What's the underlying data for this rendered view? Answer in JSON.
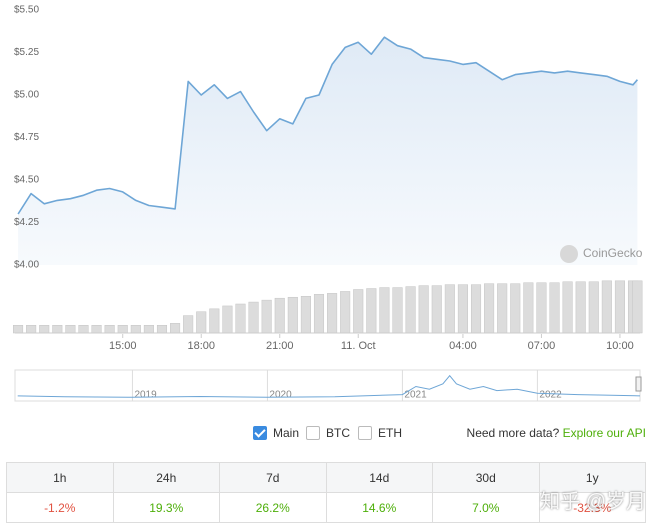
{
  "chart_data": {
    "type": "line",
    "color": "#6ea6d6",
    "x": [
      "11:00",
      "11:30",
      "12:00",
      "12:30",
      "13:00",
      "13:30",
      "14:00",
      "14:30",
      "15:00",
      "15:30",
      "16:00",
      "16:30",
      "17:00",
      "17:30",
      "18:00",
      "18:30",
      "19:00",
      "19:30",
      "20:00",
      "20:30",
      "21:00",
      "21:30",
      "22:00",
      "22:30",
      "23:00",
      "23:30",
      "00:00",
      "00:30",
      "01:00",
      "01:30",
      "02:00",
      "02:30",
      "03:00",
      "03:30",
      "04:00",
      "04:30",
      "05:00",
      "05:30",
      "06:00",
      "06:30",
      "07:00",
      "07:30",
      "08:00",
      "08:30",
      "09:00",
      "09:30",
      "10:00",
      "10:30",
      "10:40"
    ],
    "values": [
      4.3,
      4.42,
      4.36,
      4.38,
      4.39,
      4.41,
      4.44,
      4.45,
      4.43,
      4.38,
      4.35,
      4.34,
      4.33,
      5.08,
      5.0,
      5.06,
      4.98,
      5.02,
      4.9,
      4.79,
      4.86,
      4.83,
      4.98,
      5.0,
      5.18,
      5.28,
      5.31,
      5.24,
      5.34,
      5.29,
      5.27,
      5.22,
      5.21,
      5.2,
      5.18,
      5.19,
      5.14,
      5.09,
      5.12,
      5.13,
      5.14,
      5.13,
      5.14,
      5.13,
      5.12,
      5.11,
      5.08,
      5.06,
      5.09
    ],
    "volumes": [
      8,
      8,
      8,
      8,
      8,
      8,
      8,
      8,
      8,
      8,
      8,
      8,
      10,
      18,
      22,
      25,
      28,
      30,
      32,
      34,
      36,
      37,
      38,
      40,
      41,
      43,
      45,
      46,
      47,
      47,
      48,
      49,
      49,
      50,
      50,
      50,
      51,
      51,
      51,
      52,
      52,
      52,
      53,
      53,
      53,
      54,
      54,
      54,
      54
    ],
    "volume_ylim": [
      0,
      60
    ],
    "xlim": [
      "10:53",
      "10:46"
    ],
    "xticks": [
      "15:00",
      "18:00",
      "21:00",
      {
        "value": "00:00",
        "label": "11. Oct"
      },
      "04:00",
      "07:00",
      "10:00"
    ],
    "ylim": [
      4.0,
      5.5
    ],
    "yticks": [
      {
        "value": 4.0,
        "label": "$4.00"
      },
      {
        "value": 4.25,
        "label": "$4.25"
      },
      {
        "value": 4.5,
        "label": "$4.50"
      },
      {
        "value": 4.75,
        "label": "$4.75"
      },
      {
        "value": 5.0,
        "label": "$5.00"
      },
      {
        "value": 5.25,
        "label": "$5.25"
      },
      {
        "value": 5.5,
        "label": "$5.50"
      }
    ],
    "watermark": "CoinGecko",
    "navigator": {
      "x": [
        2018.15,
        2018.5,
        2019,
        2019.5,
        2020,
        2020.5,
        2021,
        2021.1,
        2021.2,
        2021.3,
        2021.35,
        2021.4,
        2021.5,
        2021.6,
        2021.7,
        2021.85,
        2022,
        2022.3,
        2022.5,
        2022.76
      ],
      "values": [
        1.5,
        1.2,
        1.0,
        1.3,
        1.0,
        1.2,
        2.0,
        5,
        4,
        6,
        9,
        6,
        4,
        5,
        3.5,
        4,
        2.5,
        2,
        1.8,
        1.5
      ],
      "xlim": [
        2018.13,
        2022.76
      ],
      "ylim": [
        0,
        10
      ],
      "xticks": [
        2019,
        2020,
        2021,
        2022
      ]
    }
  },
  "controls": {
    "toggles": [
      {
        "label": "Main",
        "checked": true
      },
      {
        "label": "BTC",
        "checked": false
      },
      {
        "label": "ETH",
        "checked": false
      }
    ],
    "prompt": "Need more data?",
    "link": "Explore our API"
  },
  "table": {
    "headers": [
      "1h",
      "24h",
      "7d",
      "14d",
      "30d",
      "1y"
    ],
    "values": [
      -1.2,
      19.3,
      26.2,
      14.6,
      7.0,
      -32.3
    ],
    "value_labels": [
      "-1.2%",
      "19.3%",
      "26.2%",
      "14.6%",
      "7.0%",
      "-32.3%"
    ]
  },
  "overlay": "知乎 @岁月"
}
